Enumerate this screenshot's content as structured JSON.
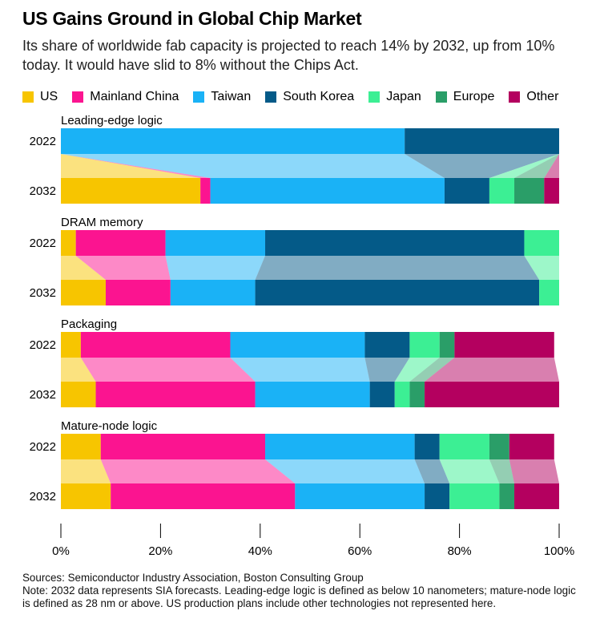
{
  "title": "US Gains Ground in Global Chip Market",
  "subtitle": "Its share of worldwide fab capacity is projected to reach 14% by 2032, up from 10% today. It would have slid to 8% without the Chips Act.",
  "sources": "Sources: Semiconductor Industry Association, Boston Consulting Group",
  "note": "Note: 2032 data represents SIA forecasts. Leading-edge logic is defined as below 10 nanometers; mature-node logic is defined as 28 nm or above. US production plans include other technologies not represented here.",
  "colors": {
    "US": "#f7c500",
    "Mainland China": "#fb1490",
    "Taiwan": "#1ab2f6",
    "South Korea": "#045a88",
    "Japan": "#3cef94",
    "Europe": "#2a9e68",
    "Other": "#b4005f"
  },
  "chart_data": {
    "type": "bar",
    "orientation": "horizontal",
    "stacked": "100%",
    "xlim": [
      0,
      100
    ],
    "x_ticks": [
      "0%",
      "20%",
      "40%",
      "60%",
      "80%",
      "100%"
    ],
    "legend": [
      "US",
      "Mainland China",
      "Taiwan",
      "South Korea",
      "Japan",
      "Europe",
      "Other"
    ],
    "legend_position": "top",
    "panels": [
      {
        "name": "Leading-edge logic",
        "rows": [
          {
            "year": "2022",
            "values": [
              0,
              0,
              69,
              31,
              0,
              0,
              0
            ]
          },
          {
            "year": "2032",
            "values": [
              28,
              2,
              47,
              9,
              5,
              6,
              3
            ]
          }
        ]
      },
      {
        "name": "DRAM memory",
        "rows": [
          {
            "year": "2022",
            "values": [
              3,
              18,
              20,
              52,
              7,
              0,
              0
            ]
          },
          {
            "year": "2032",
            "values": [
              9,
              13,
              17,
              57,
              4,
              0,
              0
            ]
          }
        ]
      },
      {
        "name": "Packaging",
        "rows": [
          {
            "year": "2022",
            "values": [
              4,
              30,
              27,
              9,
              6,
              3,
              20
            ]
          },
          {
            "year": "2032",
            "values": [
              7,
              32,
              23,
              5,
              3,
              3,
              27
            ]
          }
        ]
      },
      {
        "name": "Mature-node logic",
        "rows": [
          {
            "year": "2022",
            "values": [
              8,
              33,
              30,
              5,
              10,
              4,
              9
            ]
          },
          {
            "year": "2032",
            "values": [
              10,
              37,
              26,
              5,
              10,
              3,
              9
            ]
          }
        ]
      }
    ]
  }
}
